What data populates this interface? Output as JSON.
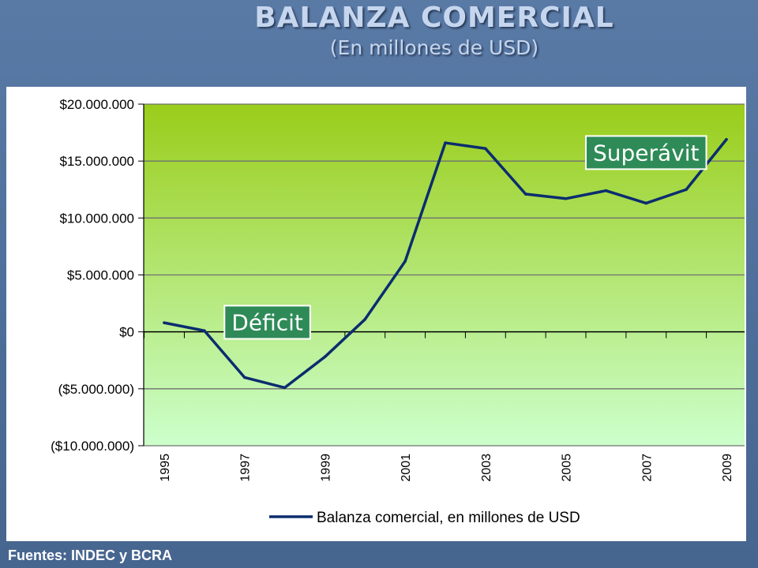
{
  "header": {
    "title": "BALANZA COMERCIAL",
    "subtitle": "(En millones de USD)"
  },
  "footer": {
    "source": "Fuentes: INDEC y BCRA"
  },
  "chart_data": {
    "type": "line",
    "title": "",
    "xlabel": "",
    "ylabel": "",
    "ylim": [
      -10000000,
      20000000
    ],
    "y_ticks": [
      20000000,
      15000000,
      10000000,
      5000000,
      0,
      -5000000,
      -10000000
    ],
    "y_tick_labels": [
      "$20.000.000",
      "$15.000.000",
      "$10.000.000",
      "$5.000.000",
      "$0",
      "($5.000.000)",
      "($10.000.000)"
    ],
    "x": [
      1995,
      1996,
      1997,
      1998,
      1999,
      2000,
      2001,
      2002,
      2003,
      2004,
      2005,
      2006,
      2007,
      2008,
      2009
    ],
    "x_tick_labels": [
      "1995",
      "1997",
      "1999",
      "2001",
      "2003",
      "2005",
      "2007",
      "2009"
    ],
    "grid": true,
    "legend_position": "bottom",
    "series": [
      {
        "name": "Balanza comercial, en millones de USD",
        "color": "#0b2d6e",
        "values": [
          800000,
          100000,
          -4000000,
          -4900000,
          -2200000,
          1100000,
          6200000,
          16600000,
          16100000,
          12100000,
          11700000,
          12400000,
          11300000,
          12500000,
          16900000
        ]
      }
    ],
    "annotations": [
      {
        "text": "Superávit",
        "x": 2005.5,
        "y": 17200000
      },
      {
        "text": "Déficit",
        "x": 1996.5,
        "y": 2300000
      }
    ],
    "colors": {
      "plot_top": "#9acd1a",
      "plot_bottom": "#ccffcc",
      "annotation_box": "#2e8b57"
    }
  }
}
